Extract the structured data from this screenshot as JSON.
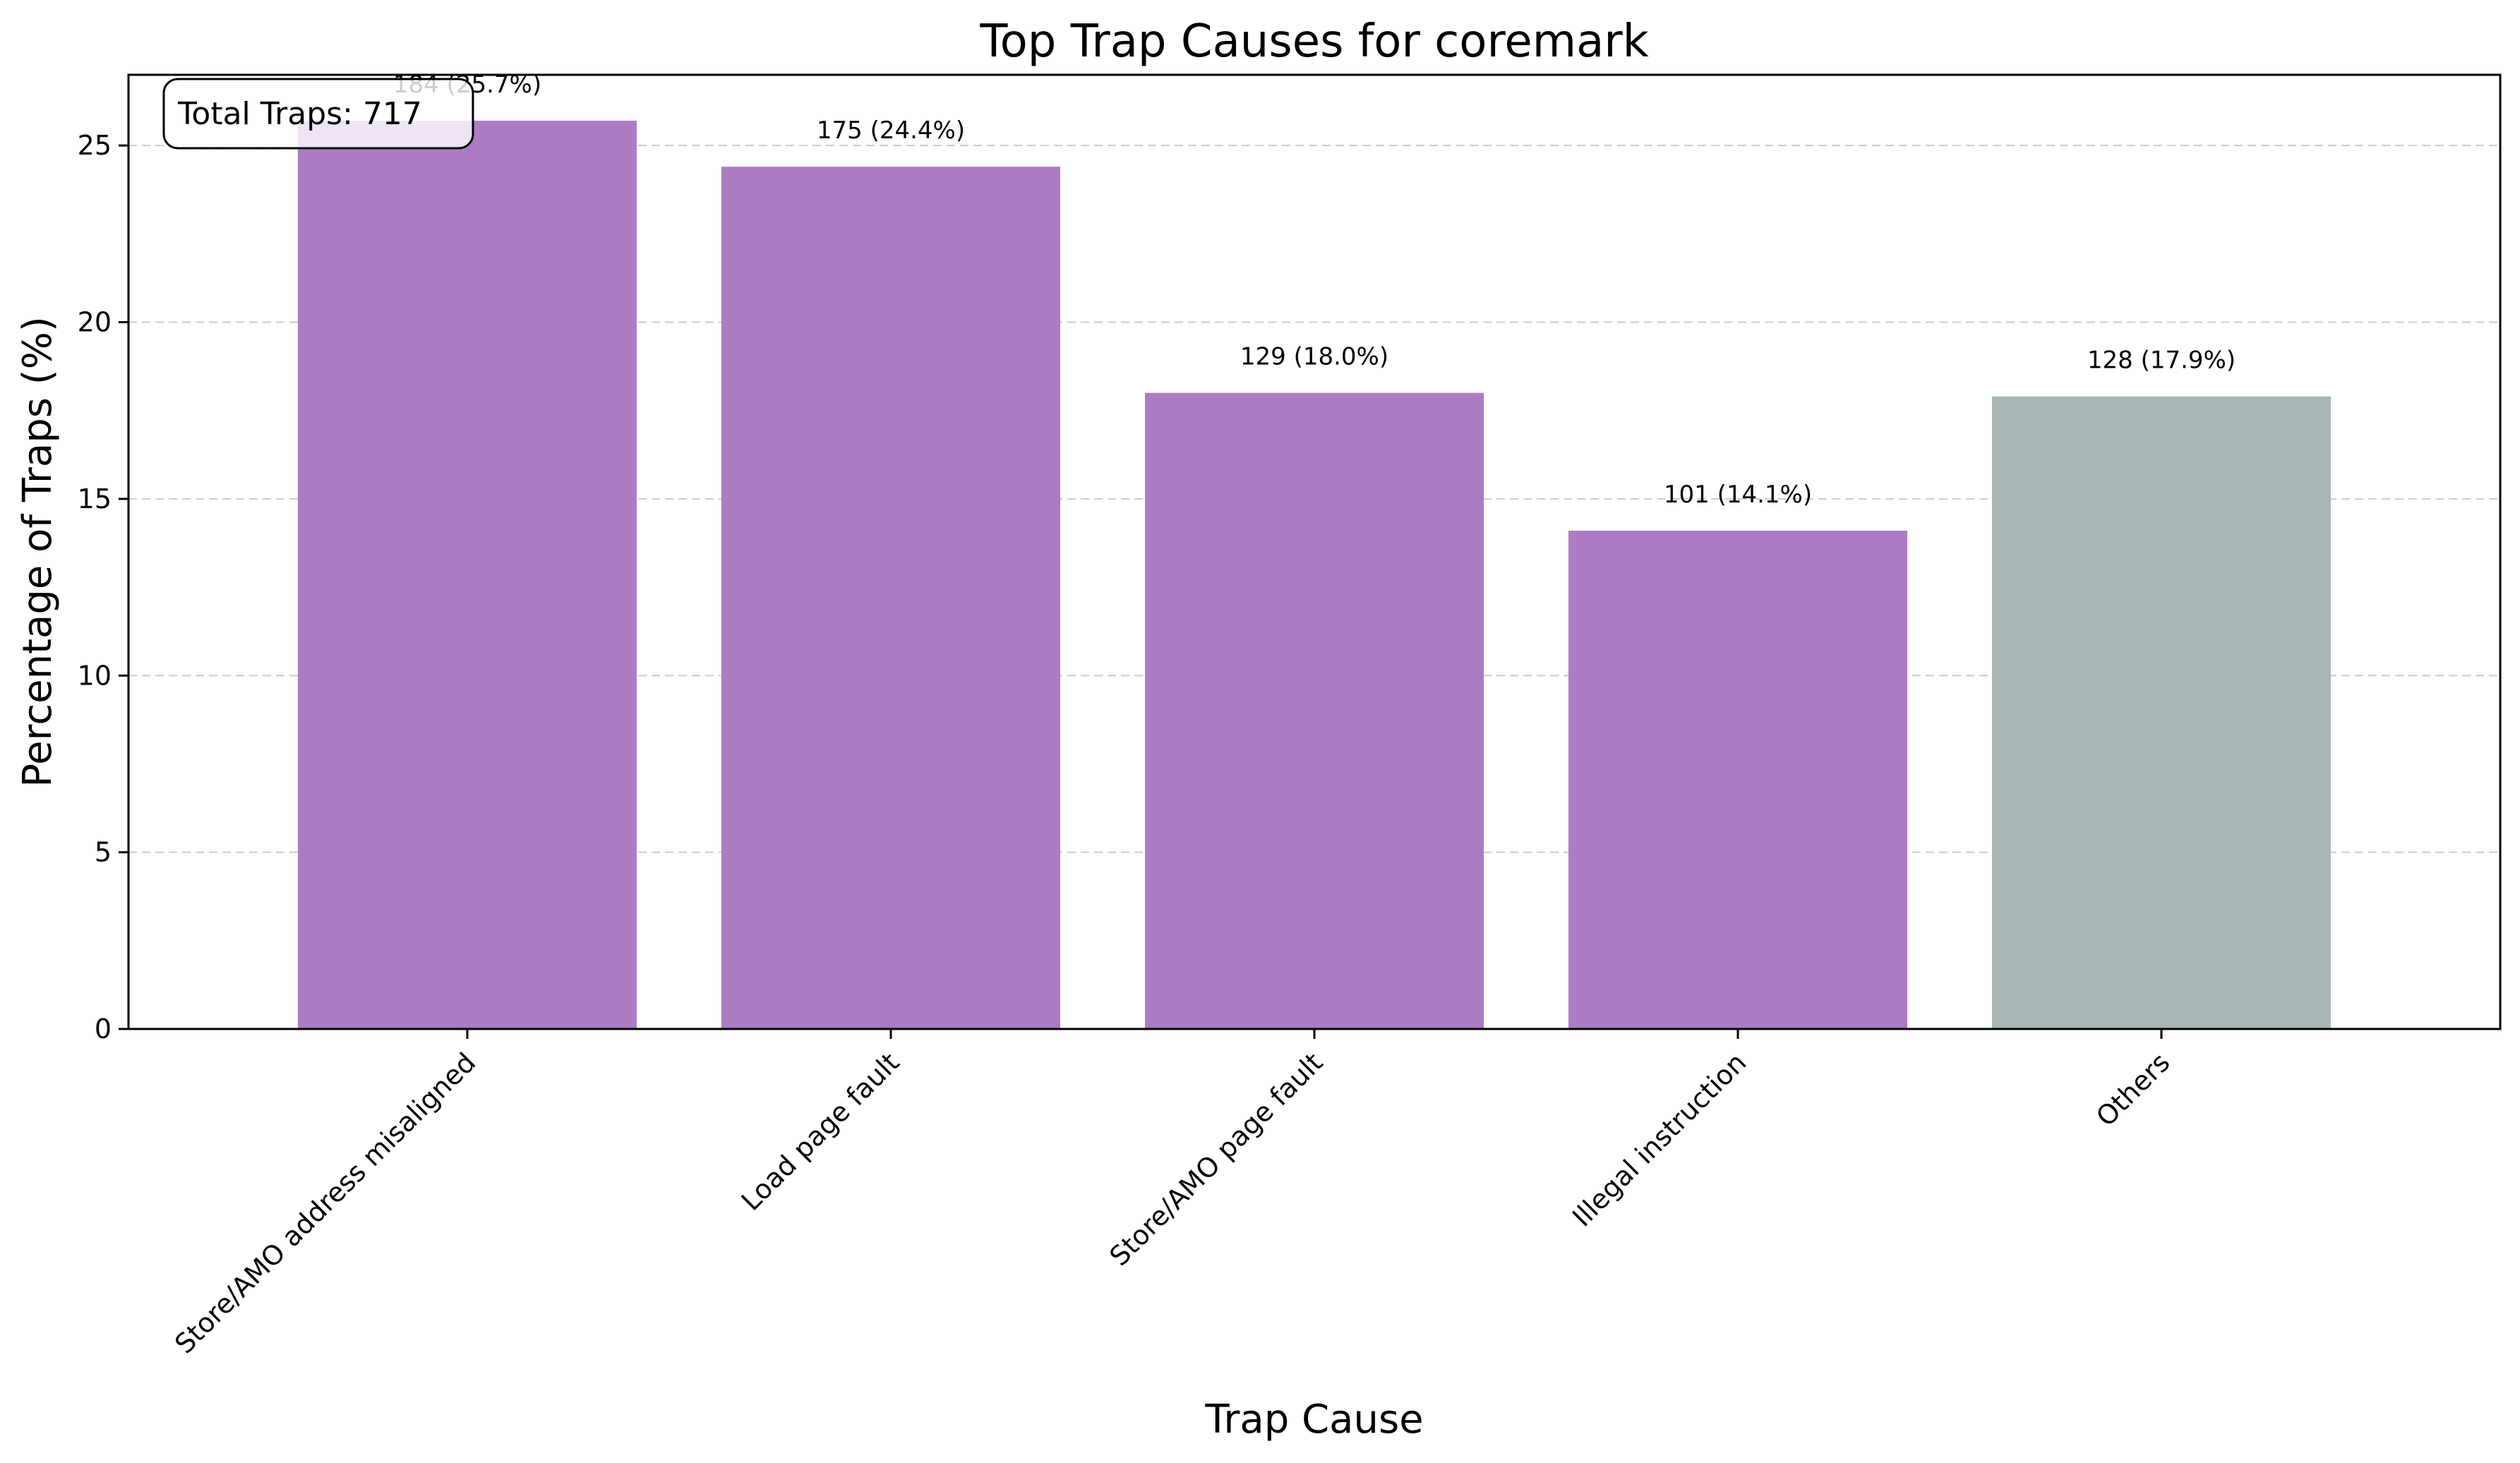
{
  "chart_data": {
    "type": "bar",
    "title": "Top Trap Causes for coremark",
    "xlabel": "Trap Cause",
    "ylabel": "Percentage of Traps (%)",
    "categories": [
      "Store/AMO address misaligned",
      "Load page fault",
      "Store/AMO page fault",
      "Illegal instruction",
      "Others"
    ],
    "values": [
      25.7,
      24.4,
      18.0,
      14.1,
      17.9
    ],
    "counts": [
      184,
      175,
      129,
      101,
      128
    ],
    "bar_labels": [
      "184 (25.7%)",
      "175 (24.4%)",
      "129 (18.0%)",
      "101 (14.1%)",
      "128 (17.9%)"
    ],
    "ylim": [
      0,
      27
    ],
    "yticks": [
      0,
      5,
      10,
      15,
      20,
      25
    ],
    "grid": "y-dashed",
    "annotation": "Total Traps: 717",
    "colors": {
      "bar": "#ad7bc4",
      "others": "#a8b5b5",
      "grid": "#cccccc"
    }
  }
}
